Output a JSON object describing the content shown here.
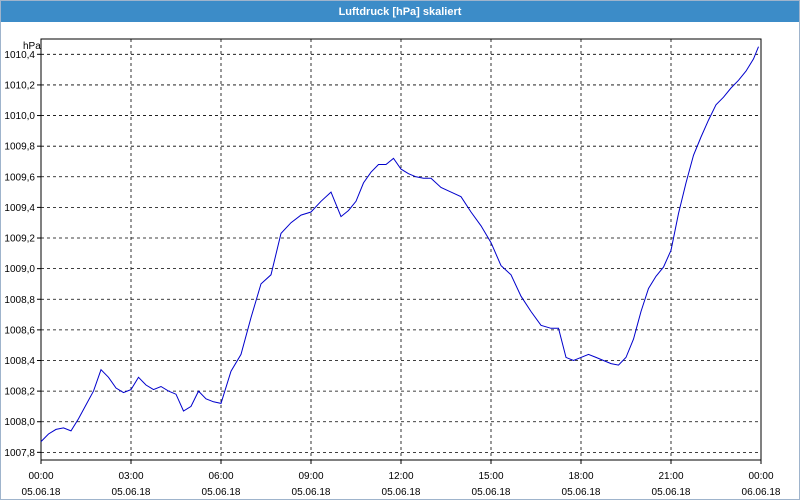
{
  "window": {
    "title": "Luftdruck [hPa] skaliert"
  },
  "chart_data": {
    "type": "line",
    "title": "Luftdruck [hPa] skaliert",
    "ylabel": "hPa",
    "xlabel": "",
    "ylim": [
      1007.75,
      1010.5
    ],
    "xlim_hours": [
      0,
      24
    ],
    "grid": true,
    "yticks": [
      "1007,8",
      "1008,0",
      "1008,2",
      "1008,4",
      "1008,6",
      "1008,8",
      "1009,0",
      "1009,2",
      "1009,4",
      "1009,6",
      "1009,8",
      "1010,0",
      "1010,2",
      "1010,4"
    ],
    "yticks_values": [
      1007.8,
      1008.0,
      1008.2,
      1008.4,
      1008.6,
      1008.8,
      1009.0,
      1009.2,
      1009.4,
      1009.6,
      1009.8,
      1010.0,
      1010.2,
      1010.4
    ],
    "xticks": [
      {
        "time": "00:00",
        "date": "05.06.18"
      },
      {
        "time": "03:00",
        "date": "05.06.18"
      },
      {
        "time": "06:00",
        "date": "05.06.18"
      },
      {
        "time": "09:00",
        "date": "05.06.18"
      },
      {
        "time": "12:00",
        "date": "05.06.18"
      },
      {
        "time": "15:00",
        "date": "05.06.18"
      },
      {
        "time": "18:00",
        "date": "05.06.18"
      },
      {
        "time": "21:00",
        "date": "05.06.18"
      },
      {
        "time": "00:00",
        "date": "06.06.18"
      }
    ],
    "series": [
      {
        "color": "#0000cc",
        "x": [
          "05.06.18 00:00",
          "05.06.18 00:15",
          "05.06.18 00:30",
          "05.06.18 00:45",
          "05.06.18 01:00",
          "05.06.18 01:15",
          "05.06.18 01:30",
          "05.06.18 01:45",
          "05.06.18 02:00",
          "05.06.18 02:15",
          "05.06.18 02:30",
          "05.06.18 02:45",
          "05.06.18 03:00",
          "05.06.18 03:15",
          "05.06.18 03:30",
          "05.06.18 03:45",
          "05.06.18 04:00",
          "05.06.18 04:15",
          "05.06.18 04:30",
          "05.06.18 04:45",
          "05.06.18 05:00",
          "05.06.18 05:15",
          "05.06.18 05:30",
          "05.06.18 05:45",
          "05.06.18 06:00",
          "05.06.18 06:20",
          "05.06.18 06:40",
          "05.06.18 07:00",
          "05.06.18 07:20",
          "05.06.18 07:40",
          "05.06.18 08:00",
          "05.06.18 08:20",
          "05.06.18 08:40",
          "05.06.18 09:00",
          "05.06.18 09:20",
          "05.06.18 09:40",
          "05.06.18 10:00",
          "05.06.18 10:15",
          "05.06.18 10:30",
          "05.06.18 10:45",
          "05.06.18 11:00",
          "05.06.18 11:15",
          "05.06.18 11:30",
          "05.06.18 11:45",
          "05.06.18 12:00",
          "05.06.18 12:15",
          "05.06.18 12:30",
          "05.06.18 12:45",
          "05.06.18 13:00",
          "05.06.18 13:20",
          "05.06.18 13:40",
          "05.06.18 14:00",
          "05.06.18 14:20",
          "05.06.18 14:40",
          "05.06.18 15:00",
          "05.06.18 15:20",
          "05.06.18 15:40",
          "05.06.18 16:00",
          "05.06.18 16:20",
          "05.06.18 16:40",
          "05.06.18 17:00",
          "05.06.18 17:15",
          "05.06.18 17:30",
          "05.06.18 17:45",
          "05.06.18 18:00",
          "05.06.18 18:15",
          "05.06.18 18:30",
          "05.06.18 18:45",
          "05.06.18 19:00",
          "05.06.18 19:15",
          "05.06.18 19:30",
          "05.06.18 19:45",
          "05.06.18 20:00",
          "05.06.18 20:15",
          "05.06.18 20:30",
          "05.06.18 20:45",
          "05.06.18 21:00",
          "05.06.18 21:15",
          "05.06.18 21:30",
          "05.06.18 21:45",
          "05.06.18 22:00",
          "05.06.18 22:15",
          "05.06.18 22:30",
          "05.06.18 22:45",
          "05.06.18 23:00",
          "05.06.18 23:15",
          "05.06.18 23:30",
          "05.06.18 23:45",
          "05.06.18 23:55"
        ],
        "y": [
          1007.87,
          1007.92,
          1007.95,
          1007.96,
          1007.94,
          1008.02,
          1008.11,
          1008.2,
          1008.34,
          1008.29,
          1008.22,
          1008.19,
          1008.21,
          1008.29,
          1008.24,
          1008.21,
          1008.23,
          1008.2,
          1008.18,
          1008.07,
          1008.1,
          1008.2,
          1008.15,
          1008.13,
          1008.12,
          1008.33,
          1008.44,
          1008.68,
          1008.9,
          1008.96,
          1009.23,
          1009.3,
          1009.35,
          1009.37,
          1009.44,
          1009.5,
          1009.34,
          1009.38,
          1009.44,
          1009.56,
          1009.63,
          1009.68,
          1009.68,
          1009.72,
          1009.65,
          1009.62,
          1009.6,
          1009.59,
          1009.59,
          1009.53,
          1009.5,
          1009.47,
          1009.37,
          1009.28,
          1009.17,
          1009.02,
          1008.96,
          1008.82,
          1008.72,
          1008.63,
          1008.61,
          1008.61,
          1008.42,
          1008.4,
          1008.42,
          1008.44,
          1008.42,
          1008.4,
          1008.38,
          1008.37,
          1008.42,
          1008.54,
          1008.72,
          1008.87,
          1008.95,
          1009.01,
          1009.12,
          1009.36,
          1009.56,
          1009.74,
          1009.86,
          1009.97,
          1010.07,
          1010.12,
          1010.18,
          1010.23,
          1010.29,
          1010.37,
          1010.45
        ]
      }
    ]
  }
}
